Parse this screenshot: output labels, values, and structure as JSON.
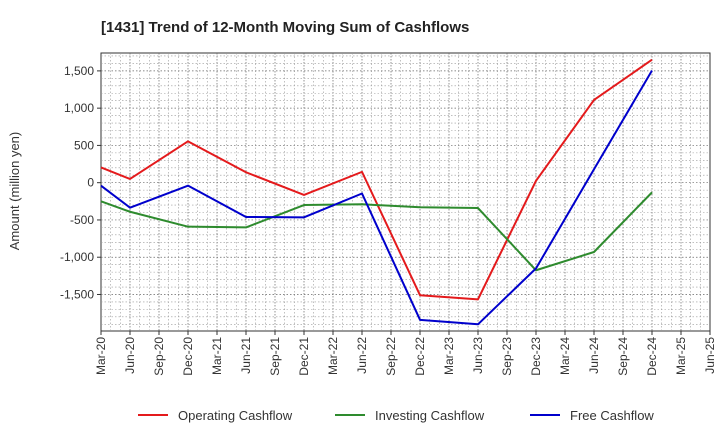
{
  "chart_data": {
    "type": "line",
    "title": "[1431]  Trend of 12-Month Moving Sum of Cashflows",
    "xlabel": "",
    "ylabel": "Amount (million yen)",
    "x": [
      "Mar-20",
      "Jun-20",
      "Sep-20",
      "Dec-20",
      "Mar-21",
      "Jun-21",
      "Sep-21",
      "Dec-21",
      "Mar-22",
      "Jun-22",
      "Sep-22",
      "Dec-22",
      "Mar-23",
      "Jun-23",
      "Sep-23",
      "Dec-23",
      "Mar-24",
      "Jun-24",
      "Sep-24",
      "Dec-24",
      "Mar-25",
      "Jun-25"
    ],
    "yticks": [
      -1500,
      -1000,
      -500,
      0,
      500,
      1000,
      1500
    ],
    "ytick_labels": [
      "-1,500",
      "-1,000",
      "-500",
      "0",
      "500",
      "1,000",
      "1,500"
    ],
    "ylim": [
      -1990,
      1740
    ],
    "grid": true,
    "legend_position": "bottom",
    "series": [
      {
        "name": "Operating Cashflow",
        "color": "#e41a1c",
        "x": [
          "Mar-20",
          "Jun-20",
          "Dec-20",
          "Jun-21",
          "Dec-21",
          "Jun-22",
          "Dec-22",
          "Jun-23",
          "Dec-23",
          "Jun-24",
          "Dec-24"
        ],
        "values": [
          205,
          50,
          555,
          140,
          -165,
          145,
          -1510,
          -1565,
          25,
          1110,
          1650
        ]
      },
      {
        "name": "Investing Cashflow",
        "color": "#2e8b2e",
        "x": [
          "Mar-20",
          "Jun-20",
          "Dec-20",
          "Jun-21",
          "Dec-21",
          "Jun-22",
          "Dec-22",
          "Jun-23",
          "Dec-23",
          "Jun-24",
          "Dec-24"
        ],
        "values": [
          -250,
          -390,
          -590,
          -600,
          -300,
          -290,
          -330,
          -340,
          -1175,
          -930,
          -130
        ]
      },
      {
        "name": "Free Cashflow",
        "color": "#0000cc",
        "x": [
          "Mar-20",
          "Jun-20",
          "Dec-20",
          "Jun-21",
          "Dec-21",
          "Jun-22",
          "Dec-22",
          "Jun-23",
          "Dec-23",
          "Jun-24",
          "Dec-24"
        ],
        "values": [
          -40,
          -335,
          -40,
          -460,
          -465,
          -145,
          -1840,
          -1900,
          -1150,
          180,
          1505
        ]
      }
    ]
  }
}
